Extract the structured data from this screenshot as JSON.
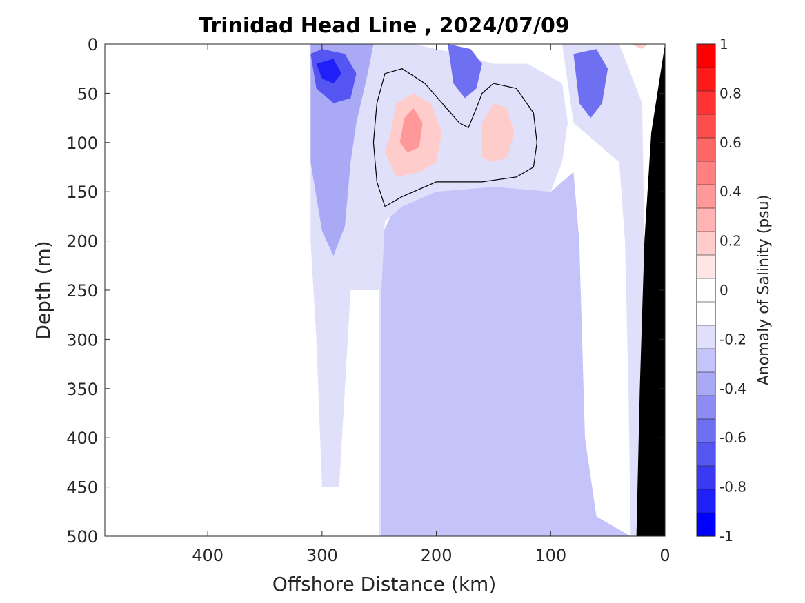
{
  "chart_data": {
    "type": "heatmap",
    "subtype": "filled-contour",
    "title": "Trinidad Head Line , 2024/07/09",
    "xlabel": "Offshore Distance (km)",
    "ylabel": "Depth (m)",
    "xlim": [
      490,
      0
    ],
    "ylim": [
      0,
      500
    ],
    "x_reversed": true,
    "y_reversed": true,
    "xticks": [
      400,
      300,
      200,
      100,
      0
    ],
    "xtick_labels": [
      "400",
      "300",
      "200",
      "100",
      "0"
    ],
    "yticks": [
      0,
      50,
      100,
      150,
      200,
      250,
      300,
      350,
      400,
      450,
      500
    ],
    "ytick_labels": [
      "0",
      "50",
      "100",
      "150",
      "200",
      "250",
      "300",
      "350",
      "400",
      "450",
      "500"
    ],
    "colorbar": {
      "label": "Anomaly of Salinity (psu)",
      "range": [
        -1,
        1
      ],
      "ticks": [
        1,
        0.8,
        0.6,
        0.4,
        0.2,
        0,
        -0.2,
        -0.4,
        -0.6,
        -0.8,
        -1
      ],
      "tick_labels": [
        "1",
        "0.8",
        "0.6",
        "0.4",
        "0.2",
        "0",
        "-0.2",
        "-0.4",
        "-0.6",
        "-0.8",
        "-1"
      ],
      "levels": [
        {
          "from": 0.9,
          "to": 1.0,
          "color": "#ff0000"
        },
        {
          "from": 0.8,
          "to": 0.9,
          "color": "#ff1a1a"
        },
        {
          "from": 0.7,
          "to": 0.8,
          "color": "#ff3333"
        },
        {
          "from": 0.6,
          "to": 0.7,
          "color": "#ff4d4d"
        },
        {
          "from": 0.5,
          "to": 0.6,
          "color": "#ff6666"
        },
        {
          "from": 0.4,
          "to": 0.5,
          "color": "#ff8080"
        },
        {
          "from": 0.3,
          "to": 0.4,
          "color": "#ff9999"
        },
        {
          "from": 0.2,
          "to": 0.3,
          "color": "#ffb3b3"
        },
        {
          "from": 0.1,
          "to": 0.2,
          "color": "#ffcccc"
        },
        {
          "from": 0.0,
          "to": 0.1,
          "color": "#ffe6e6"
        },
        {
          "from": -0.1,
          "to": 0.0,
          "color": "#ffffff"
        },
        {
          "from": -0.1,
          "to": 0.0,
          "color": "#ffffff"
        },
        {
          "from": -0.2,
          "to": -0.1,
          "color": "#e0e0fb"
        },
        {
          "from": -0.3,
          "to": -0.2,
          "color": "#c4c4fa"
        },
        {
          "from": -0.4,
          "to": -0.3,
          "color": "#a9a9f6"
        },
        {
          "from": -0.5,
          "to": -0.4,
          "color": "#8c8cf4"
        },
        {
          "from": -0.6,
          "to": -0.5,
          "color": "#6f6ff2"
        },
        {
          "from": -0.7,
          "to": -0.6,
          "color": "#5555f2"
        },
        {
          "from": -0.8,
          "to": -0.7,
          "color": "#3a3af2"
        },
        {
          "from": -0.9,
          "to": -0.8,
          "color": "#1f1ff7"
        },
        {
          "from": -1.0,
          "to": -0.9,
          "color": "#0000ff"
        }
      ]
    },
    "regions": [
      {
        "name": "deep-slope-anomaly",
        "value": -0.25,
        "color": "#c4c4fa",
        "polygon": [
          [
            248,
            500
          ],
          [
            248,
            250
          ],
          [
            250,
            200
          ],
          [
            230,
            150
          ],
          [
            200,
            145
          ],
          [
            170,
            140
          ],
          [
            130,
            145
          ],
          [
            100,
            150
          ],
          [
            80,
            130
          ],
          [
            75,
            200
          ],
          [
            70,
            400
          ],
          [
            60,
            480
          ],
          [
            30,
            500
          ]
        ]
      },
      {
        "name": "outer-weak-negative",
        "value": -0.15,
        "color": "#e0e0fb",
        "polygon": [
          [
            310,
            0
          ],
          [
            310,
            200
          ],
          [
            305,
            300
          ],
          [
            300,
            450
          ],
          [
            285,
            450
          ],
          [
            280,
            350
          ],
          [
            275,
            250
          ],
          [
            250,
            250
          ],
          [
            250,
            500
          ],
          [
            248,
            500
          ],
          [
            248,
            250
          ],
          [
            245,
            180
          ],
          [
            230,
            165
          ],
          [
            200,
            150
          ],
          [
            150,
            145
          ],
          [
            100,
            150
          ],
          [
            90,
            120
          ],
          [
            85,
            80
          ],
          [
            90,
            40
          ],
          [
            120,
            20
          ],
          [
            150,
            20
          ],
          [
            180,
            10
          ],
          [
            220,
            0
          ]
        ]
      },
      {
        "name": "coastal-weak-negative",
        "value": -0.15,
        "color": "#e0e0fb",
        "polygon": [
          [
            90,
            0
          ],
          [
            40,
            0
          ],
          [
            20,
            60
          ],
          [
            18,
            200
          ],
          [
            20,
            350
          ],
          [
            25,
            500
          ],
          [
            30,
            500
          ],
          [
            32,
            350
          ],
          [
            35,
            200
          ],
          [
            40,
            120
          ],
          [
            60,
            100
          ],
          [
            80,
            80
          ]
        ]
      },
      {
        "name": "mid-negative",
        "value": -0.35,
        "color": "#a9a9f6",
        "polygon": [
          [
            310,
            0
          ],
          [
            310,
            120
          ],
          [
            300,
            190
          ],
          [
            290,
            215
          ],
          [
            280,
            185
          ],
          [
            275,
            120
          ],
          [
            270,
            80
          ],
          [
            260,
            30
          ],
          [
            255,
            0
          ]
        ]
      },
      {
        "name": "core-negative-west",
        "value": -0.65,
        "color": "#5555f2",
        "polygon": [
          [
            310,
            10
          ],
          [
            305,
            45
          ],
          [
            290,
            60
          ],
          [
            275,
            55
          ],
          [
            270,
            30
          ],
          [
            280,
            10
          ],
          [
            300,
            5
          ]
        ]
      },
      {
        "name": "core-negative-west-deep",
        "value": -0.85,
        "color": "#1f1ff7",
        "polygon": [
          [
            305,
            20
          ],
          [
            300,
            35
          ],
          [
            290,
            40
          ],
          [
            283,
            30
          ],
          [
            290,
            15
          ]
        ]
      },
      {
        "name": "core-negative-mid",
        "value": -0.55,
        "color": "#6f6ff2",
        "polygon": [
          [
            190,
            0
          ],
          [
            185,
            40
          ],
          [
            175,
            55
          ],
          [
            165,
            45
          ],
          [
            160,
            20
          ],
          [
            170,
            5
          ]
        ]
      },
      {
        "name": "core-negative-east",
        "value": -0.55,
        "color": "#6f6ff2",
        "polygon": [
          [
            80,
            10
          ],
          [
            75,
            60
          ],
          [
            65,
            75
          ],
          [
            55,
            60
          ],
          [
            50,
            25
          ],
          [
            60,
            5
          ]
        ]
      },
      {
        "name": "positive-west",
        "value": 0.2,
        "color": "#ffcccc",
        "polygon": [
          [
            245,
            110
          ],
          [
            240,
            90
          ],
          [
            235,
            60
          ],
          [
            220,
            50
          ],
          [
            205,
            60
          ],
          [
            195,
            90
          ],
          [
            200,
            120
          ],
          [
            215,
            130
          ],
          [
            235,
            135
          ]
        ]
      },
      {
        "name": "positive-west-core",
        "value": 0.35,
        "color": "#ff9999",
        "polygon": [
          [
            232,
            100
          ],
          [
            228,
            75
          ],
          [
            220,
            65
          ],
          [
            212,
            80
          ],
          [
            215,
            105
          ],
          [
            225,
            110
          ]
        ]
      },
      {
        "name": "positive-east",
        "value": 0.2,
        "color": "#ffcccc",
        "polygon": [
          [
            160,
            115
          ],
          [
            160,
            80
          ],
          [
            150,
            60
          ],
          [
            138,
            65
          ],
          [
            132,
            90
          ],
          [
            138,
            115
          ],
          [
            150,
            120
          ]
        ]
      },
      {
        "name": "positive-nearshore",
        "value": 0.15,
        "color": "#ffcccc",
        "polygon": [
          [
            30,
            0
          ],
          [
            20,
            5
          ],
          [
            15,
            0
          ]
        ]
      }
    ],
    "zero_contour": [
      [
        245,
        165
      ],
      [
        252,
        140
      ],
      [
        255,
        100
      ],
      [
        252,
        60
      ],
      [
        245,
        30
      ],
      [
        230,
        25
      ],
      [
        210,
        40
      ],
      [
        195,
        60
      ],
      [
        180,
        80
      ],
      [
        172,
        85
      ],
      [
        165,
        65
      ],
      [
        160,
        50
      ],
      [
        150,
        40
      ],
      [
        130,
        45
      ],
      [
        115,
        70
      ],
      [
        112,
        100
      ],
      [
        115,
        125
      ],
      [
        130,
        135
      ],
      [
        160,
        140
      ],
      [
        200,
        140
      ],
      [
        230,
        155
      ],
      [
        245,
        165
      ]
    ],
    "bathymetry": {
      "color": "#000000",
      "polygon": [
        [
          25,
          500
        ],
        [
          0,
          500
        ],
        [
          0,
          0
        ],
        [
          12,
          90
        ],
        [
          18,
          200
        ],
        [
          22,
          350
        ]
      ]
    }
  }
}
